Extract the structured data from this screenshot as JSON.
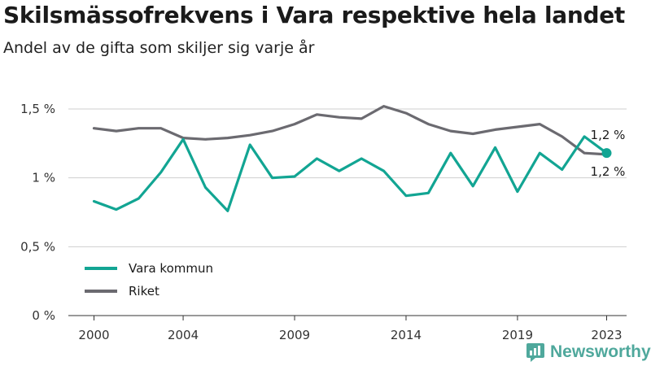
{
  "header": {
    "title": "Skilsmässofrekvens i Vara respektive hela landet",
    "subtitle": "Andel av de gifta som skiljer sig varje år"
  },
  "brand": {
    "name": "Newsworthy",
    "icon": "newsworthy-logo-icon",
    "color": "#4fa89c"
  },
  "chart_data": {
    "type": "line",
    "x": [
      2000,
      2001,
      2002,
      2003,
      2004,
      2005,
      2006,
      2007,
      2008,
      2009,
      2010,
      2011,
      2012,
      2013,
      2014,
      2015,
      2016,
      2017,
      2018,
      2019,
      2020,
      2021,
      2022,
      2023
    ],
    "x_ticks": [
      2000,
      2004,
      2009,
      2014,
      2019,
      2023
    ],
    "x_tick_labels": [
      "2000",
      "2004",
      "2009",
      "2014",
      "2019",
      "2023"
    ],
    "y_ticks": [
      0,
      0.5,
      1,
      1.5
    ],
    "y_tick_labels": [
      "0 %",
      "0,5 %",
      "1 %",
      "1,5 %"
    ],
    "ylim": [
      0,
      1.6
    ],
    "grid": "horizontal",
    "legend_position": "bottom-left",
    "series": [
      {
        "name": "Vara kommun",
        "color": "#12a593",
        "values": [
          0.83,
          0.77,
          0.85,
          1.04,
          1.28,
          0.93,
          0.76,
          1.24,
          1.0,
          1.01,
          1.14,
          1.05,
          1.14,
          1.05,
          0.87,
          0.89,
          1.18,
          0.94,
          1.22,
          0.9,
          1.18,
          1.06,
          1.3,
          1.18
        ],
        "end_label": "1,2 %",
        "end_label_position": "above"
      },
      {
        "name": "Riket",
        "color": "#6b6a70",
        "values": [
          1.36,
          1.34,
          1.36,
          1.36,
          1.29,
          1.28,
          1.29,
          1.31,
          1.34,
          1.39,
          1.46,
          1.44,
          1.43,
          1.52,
          1.47,
          1.39,
          1.34,
          1.32,
          1.35,
          1.37,
          1.39,
          1.3,
          1.18,
          1.17
        ],
        "end_label": "1,2 %",
        "end_label_position": "below"
      }
    ]
  }
}
